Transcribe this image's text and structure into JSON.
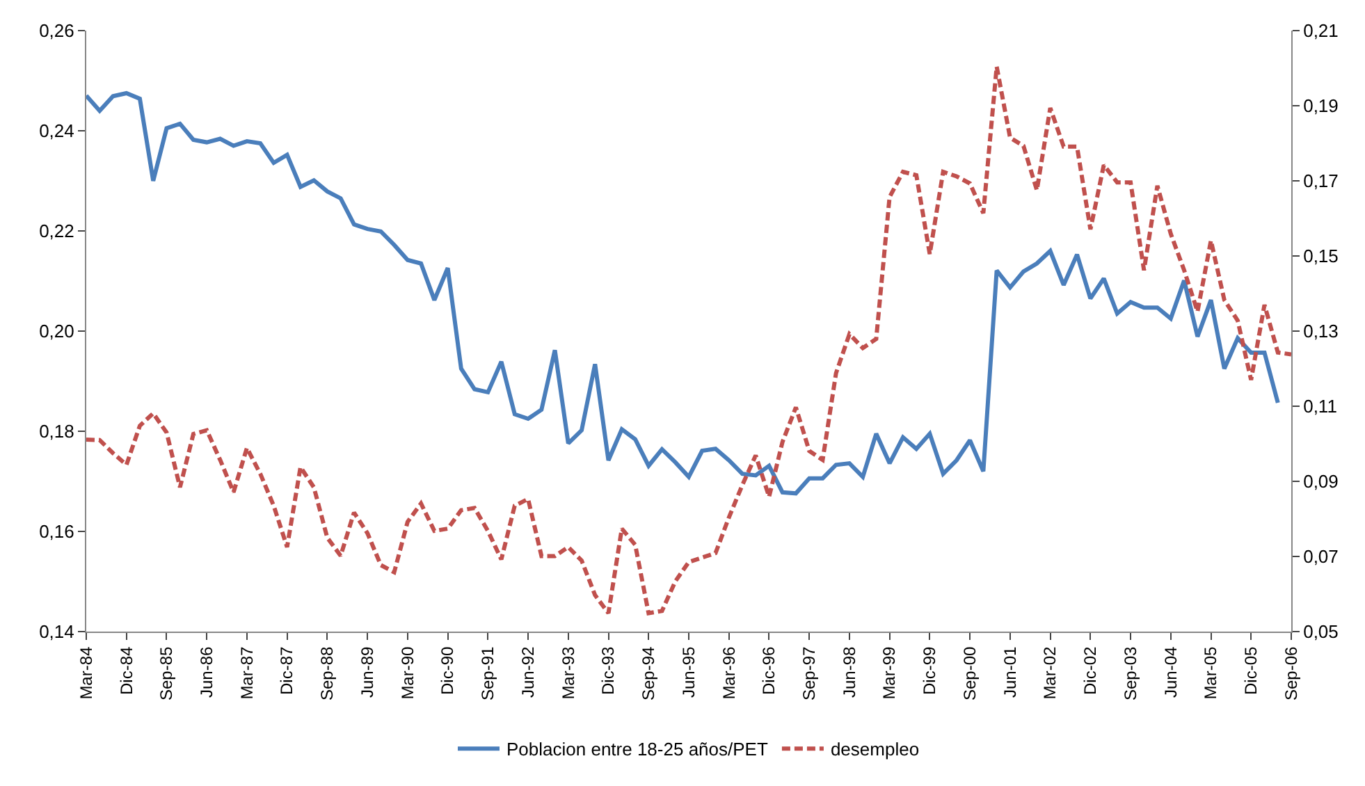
{
  "chart_data": {
    "type": "line",
    "categories": [
      "Mar-84",
      null,
      null,
      "Dic-84",
      null,
      null,
      "Sep-85",
      null,
      null,
      "Jun-86",
      null,
      null,
      "Mar-87",
      null,
      null,
      "Dic-87",
      null,
      null,
      "Sep-88",
      null,
      null,
      "Jun-89",
      null,
      null,
      "Mar-90",
      null,
      null,
      "Dic-90",
      null,
      null,
      "Sep-91",
      null,
      null,
      "Jun-92",
      null,
      null,
      "Mar-93",
      null,
      null,
      "Dic-93",
      null,
      null,
      "Sep-94",
      null,
      null,
      "Jun-95",
      null,
      null,
      "Mar-96",
      null,
      null,
      "Dic-96",
      null,
      null,
      "Sep-97",
      null,
      null,
      "Jun-98",
      null,
      null,
      "Mar-99",
      null,
      null,
      "Dic-99",
      null,
      null,
      "Sep-00",
      null,
      null,
      "Jun-01",
      null,
      null,
      "Mar-02",
      null,
      null,
      "Dic-02",
      null,
      null,
      "Sep-03",
      null,
      null,
      "Jun-04",
      null,
      null,
      "Mar-05",
      null,
      null,
      "Dic-05",
      null,
      null,
      "Sep-06"
    ],
    "series": [
      {
        "name": "Poblacion entre 18-25 años/PET",
        "color": "#4a7ebb",
        "line_style": "solid",
        "values": [
          0.247,
          0.244,
          0.2469,
          0.2475,
          0.2464,
          0.23,
          0.2405,
          0.2414,
          0.2382,
          0.2377,
          0.2384,
          0.237,
          0.2379,
          0.2375,
          0.2336,
          0.2352,
          0.2288,
          0.2301,
          0.2279,
          0.2265,
          0.2213,
          0.2204,
          0.2199,
          0.2172,
          0.2142,
          0.2135,
          0.2062,
          0.2126,
          0.1925,
          0.1884,
          0.1878,
          0.1939,
          0.1834,
          0.1825,
          0.1843,
          0.1962,
          0.1776,
          0.1802,
          0.1934,
          0.1742,
          0.1804,
          0.1784,
          0.1731,
          0.1764,
          0.1738,
          0.1709,
          0.1761,
          0.1765,
          0.1742,
          0.1715,
          0.1712,
          0.1731,
          0.1678,
          0.1676,
          0.1706,
          0.1706,
          0.1733,
          0.1736,
          0.1709,
          0.1795,
          0.1736,
          0.1788,
          0.1765,
          0.1795,
          0.1715,
          0.1742,
          0.1782,
          0.172,
          0.2121,
          0.2087,
          0.2119,
          0.2135,
          0.216,
          0.2092,
          0.2153,
          0.2065,
          0.2105,
          0.2035,
          0.2058,
          0.2047,
          0.2047,
          0.2025,
          0.2101,
          0.1989,
          0.2062,
          0.1925,
          0.1986,
          0.1957,
          0.1957,
          0.1857,
          null
        ]
      },
      {
        "name": "desempleo",
        "color": "#c0504d",
        "line_style": "dashed",
        "axis": "y2",
        "values": [
          0.1011,
          0.101,
          0.0975,
          0.0944,
          0.1048,
          0.1081,
          0.103,
          0.0884,
          0.1026,
          0.1036,
          0.0957,
          0.0871,
          0.0989,
          0.092,
          0.0835,
          0.0725,
          0.0938,
          0.0884,
          0.075,
          0.0702,
          0.0817,
          0.0762,
          0.0677,
          0.0658,
          0.0792,
          0.0841,
          0.0768,
          0.0774,
          0.0823,
          0.0829,
          0.0768,
          0.0692,
          0.0835,
          0.0853,
          0.0701,
          0.0701,
          0.0725,
          0.0689,
          0.0597,
          0.0549,
          0.0774,
          0.0731,
          0.0549,
          0.0555,
          0.0634,
          0.0685,
          0.0697,
          0.0709,
          0.0804,
          0.089,
          0.0969,
          0.0859,
          0.1005,
          0.1097,
          0.0981,
          0.0957,
          0.1188,
          0.1292,
          0.1255,
          0.1279,
          0.1657,
          0.1724,
          0.1715,
          0.1505,
          0.1724,
          0.1712,
          0.1693,
          0.1614,
          0.2004,
          0.1815,
          0.1793,
          0.1675,
          0.1894,
          0.1791,
          0.1791,
          0.1571,
          0.1742,
          0.1696,
          0.1696,
          0.1462,
          0.1687,
          0.1559,
          0.1462,
          0.1352,
          0.1541,
          0.1383,
          0.1328,
          0.117,
          0.137,
          0.1243,
          0.1238
        ]
      }
    ],
    "ylim": [
      0.14,
      0.26
    ],
    "yticks": [
      {
        "value": 0.14,
        "label": "0,14"
      },
      {
        "value": 0.16,
        "label": "0,16"
      },
      {
        "value": 0.18,
        "label": "0,18"
      },
      {
        "value": 0.2,
        "label": "0,20"
      },
      {
        "value": 0.22,
        "label": "0,22"
      },
      {
        "value": 0.24,
        "label": "0,24"
      },
      {
        "value": 0.26,
        "label": "0,26"
      }
    ],
    "y2lim": [
      0.05,
      0.21
    ],
    "y2ticks": [
      {
        "value": 0.05,
        "label": "0,05"
      },
      {
        "value": 0.07,
        "label": "0,07"
      },
      {
        "value": 0.09,
        "label": "0,09"
      },
      {
        "value": 0.11,
        "label": "0,11"
      },
      {
        "value": 0.13,
        "label": "0,13"
      },
      {
        "value": 0.15,
        "label": "0,15"
      },
      {
        "value": 0.17,
        "label": "0,17"
      },
      {
        "value": 0.19,
        "label": "0,19"
      },
      {
        "value": 0.21,
        "label": "0,21"
      }
    ],
    "legend": "bottom",
    "marker": "none"
  }
}
